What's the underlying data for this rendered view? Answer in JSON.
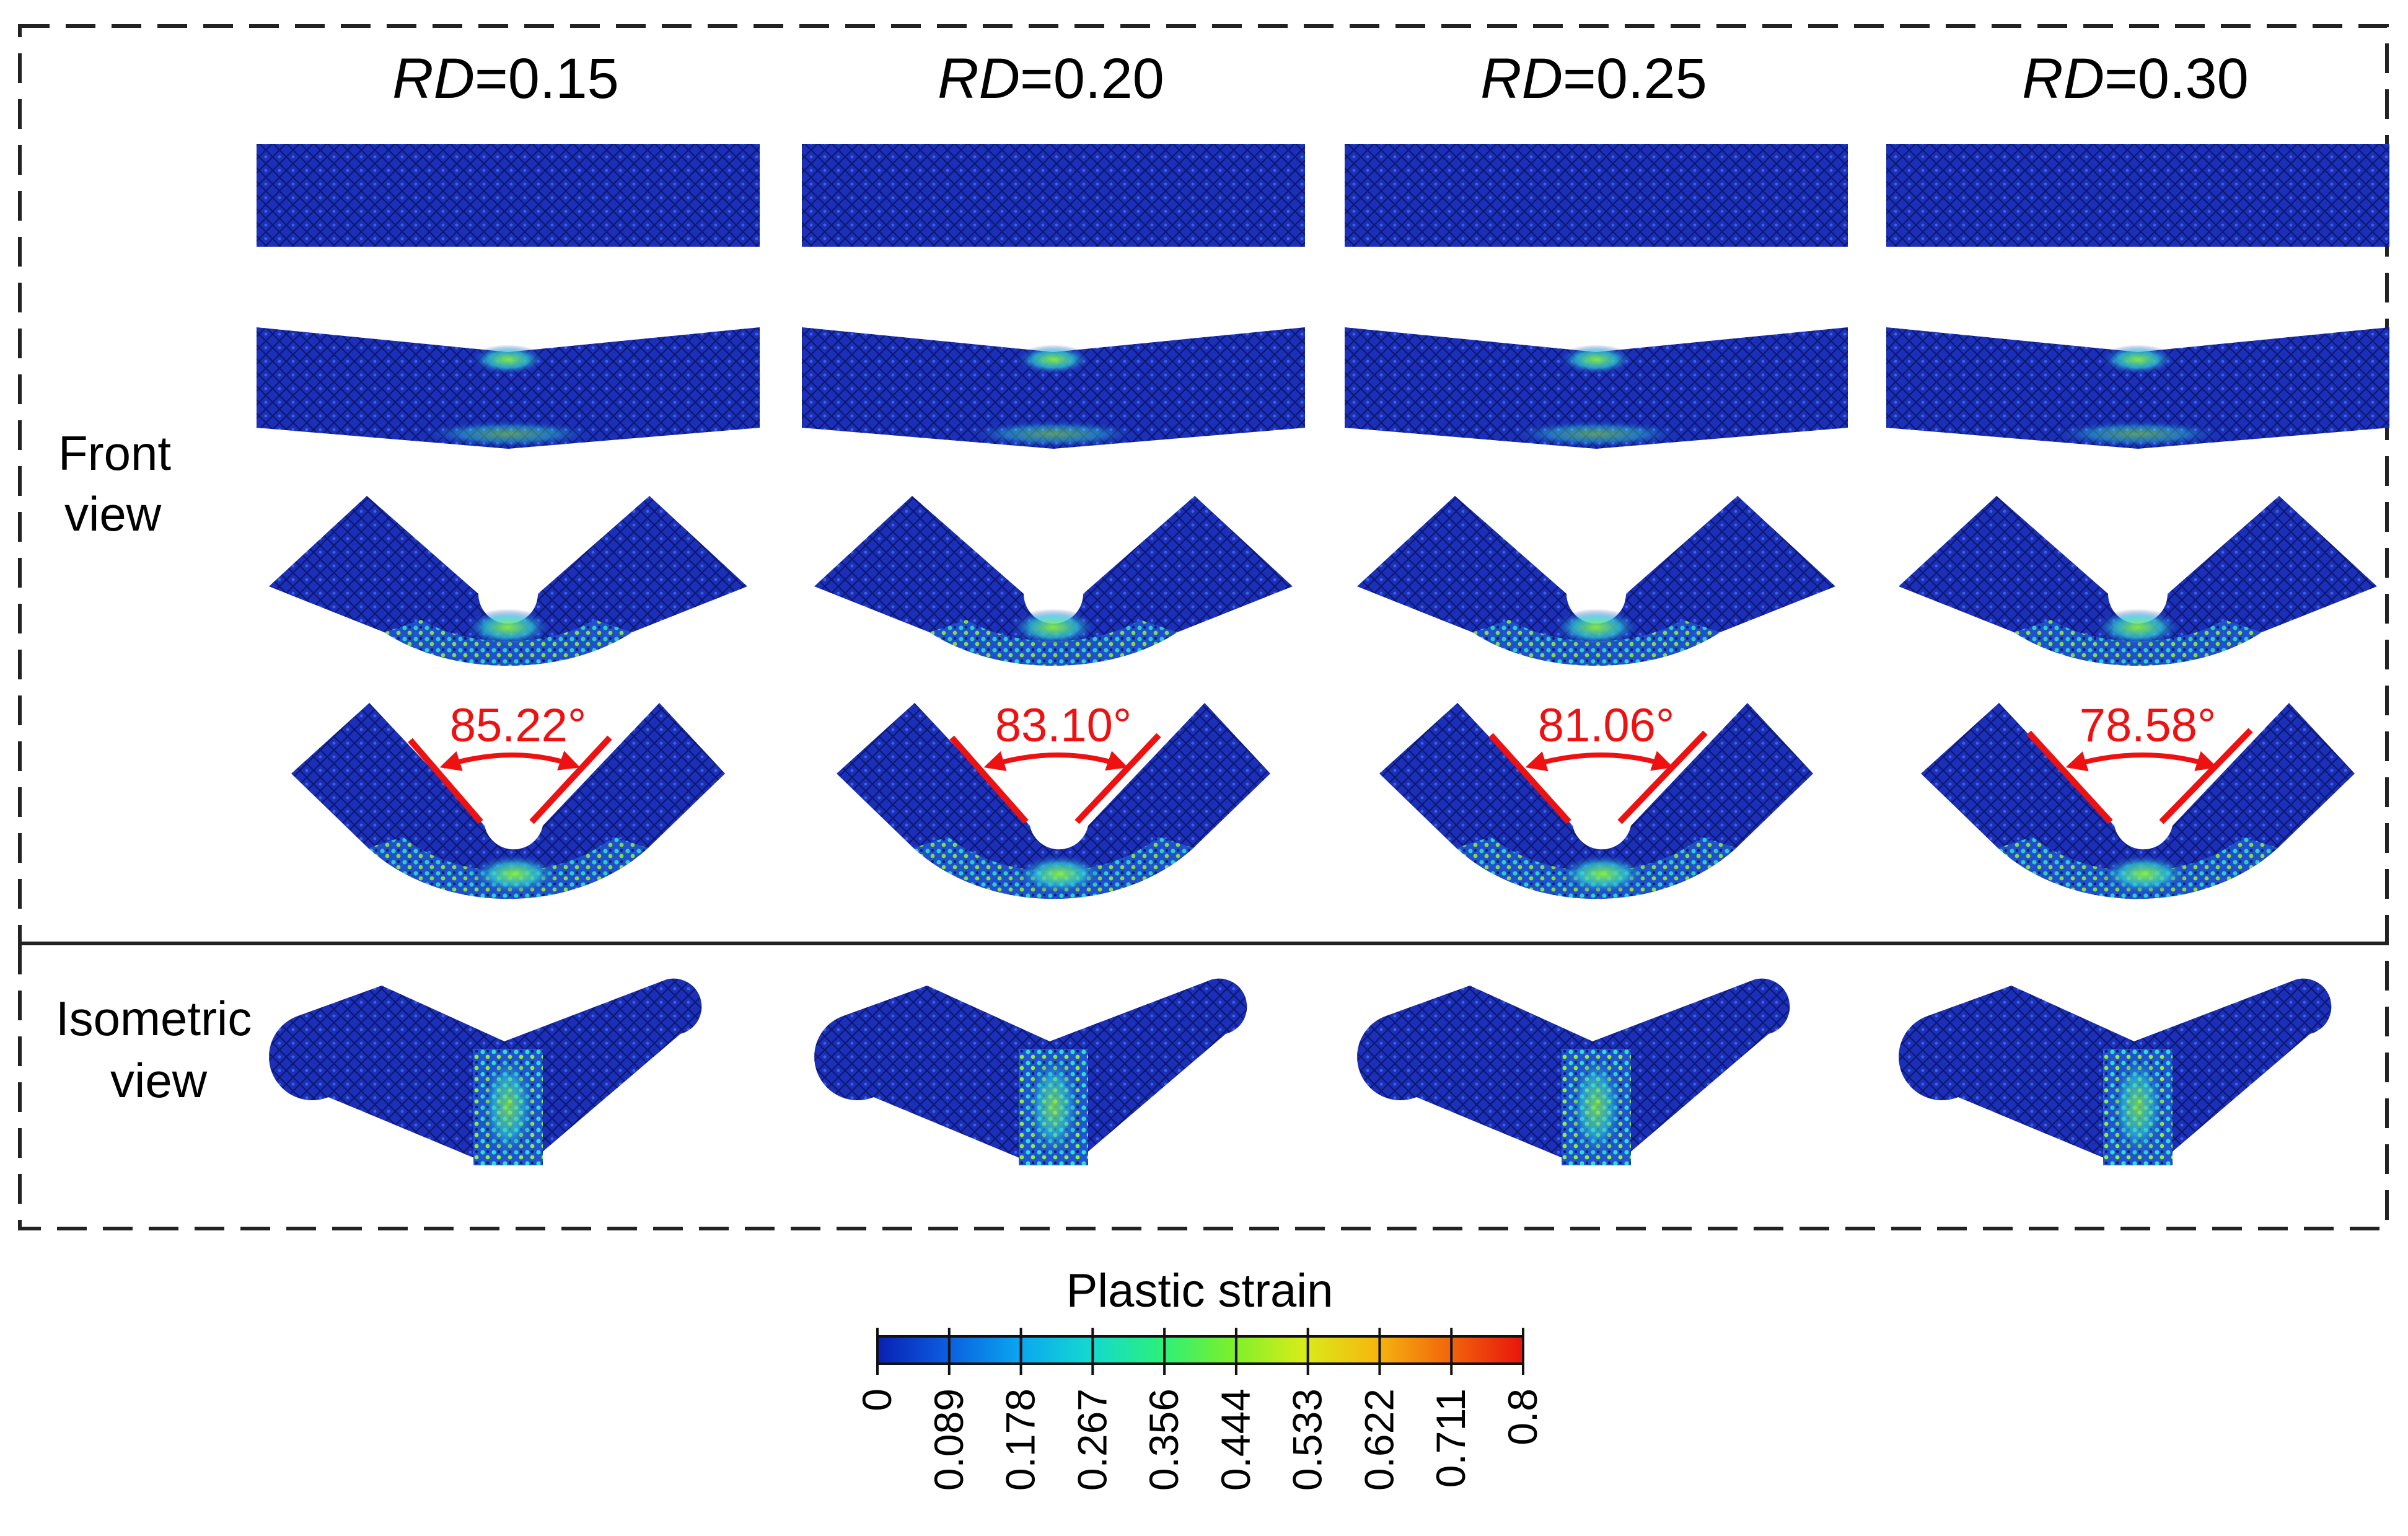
{
  "columns": [
    {
      "var": "RD",
      "value": "=0.15",
      "angle": "85.22°"
    },
    {
      "var": "RD",
      "value": "=0.20",
      "angle": "83.10°"
    },
    {
      "var": "RD",
      "value": "=0.25",
      "angle": "81.06°"
    },
    {
      "var": "RD",
      "value": "=0.30",
      "angle": "78.58°"
    }
  ],
  "rows": {
    "front": {
      "line1": "Front",
      "line2": "view"
    },
    "isometric": {
      "line1": "Isometric",
      "line2": "view"
    }
  },
  "colorbar": {
    "title": "Plastic strain",
    "ticks": [
      "0",
      "0.089",
      "0.178",
      "0.267",
      "0.356",
      "0.444",
      "0.533",
      "0.622",
      "0.711",
      "0.8"
    ],
    "colors": [
      "#0a1fb4",
      "#0b5fe0",
      "#0aa6f0",
      "#14d9d0",
      "#2af07a",
      "#7cf02a",
      "#d8ec1a",
      "#f5b80e",
      "#f26a0c",
      "#e8140c"
    ]
  },
  "colors": {
    "mesh_base": "#1b2fb8",
    "mesh_dark": "#0c1770",
    "mesh_strain": "#38d6c0",
    "annotation": "#ee1111",
    "frame": "#222222"
  }
}
